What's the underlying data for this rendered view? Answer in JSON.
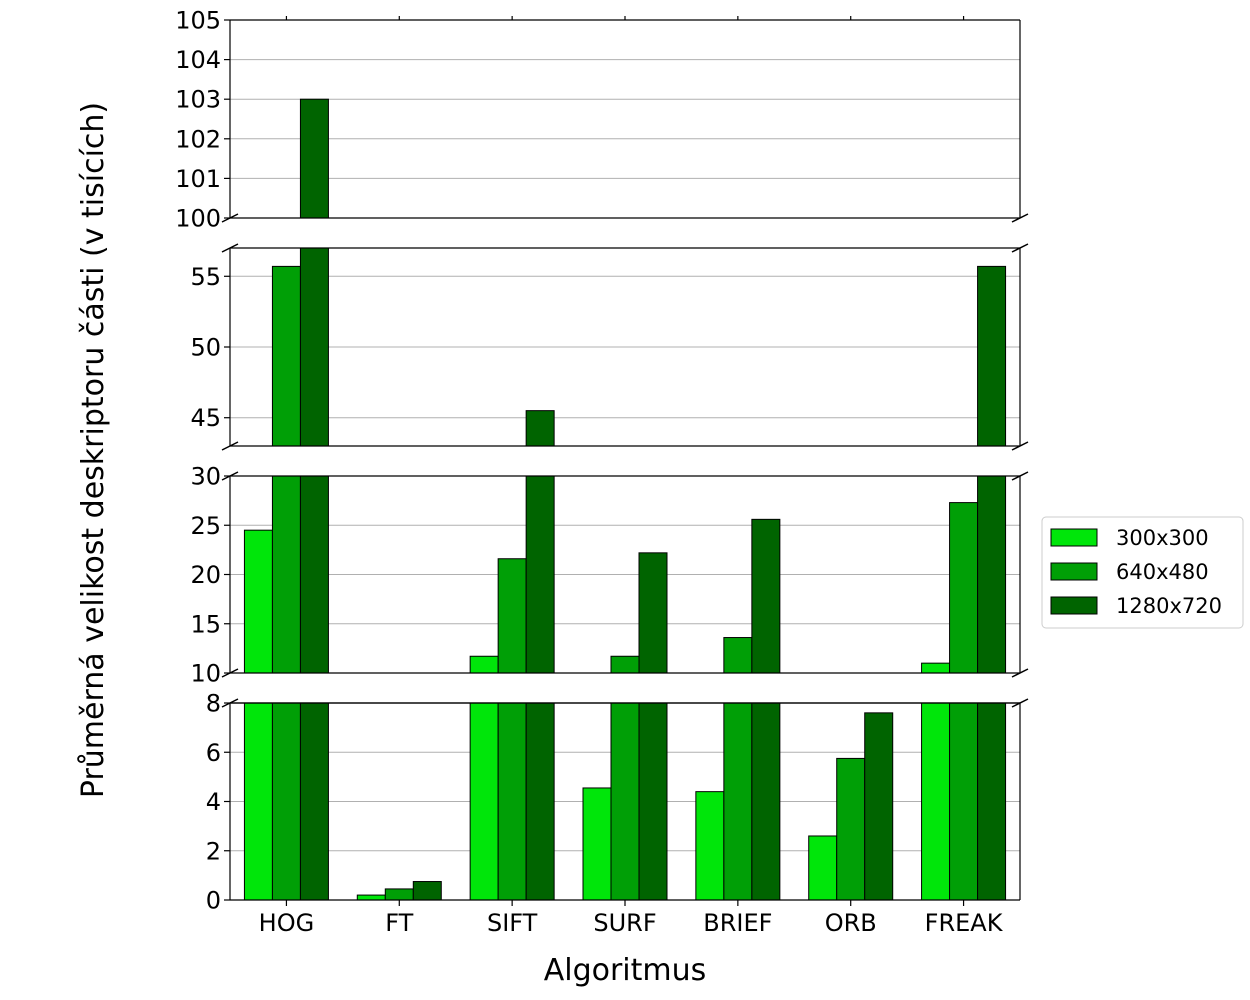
{
  "chart_data": {
    "type": "bar",
    "title": "",
    "xlabel": "Algoritmus",
    "ylabel": "Průměrná velikost deskriptoru části (v tisících)",
    "categories": [
      "HOG",
      "FT",
      "SIFT",
      "SURF",
      "BRIEF",
      "ORB",
      "FREAK"
    ],
    "series": [
      {
        "name": "300x300",
        "color": "#00e60a",
        "values": [
          24.5,
          0.2,
          11.7,
          4.55,
          4.4,
          2.6,
          11.0
        ]
      },
      {
        "name": "640x480",
        "color": "#009f06",
        "values": [
          55.7,
          0.45,
          21.6,
          11.7,
          13.6,
          5.75,
          27.3
        ]
      },
      {
        "name": "1280x720",
        "color": "#006400",
        "values": [
          103.0,
          0.75,
          45.5,
          22.2,
          25.6,
          7.6,
          55.7
        ]
      }
    ],
    "broken_axis_segments": [
      {
        "ylim": [
          100,
          105
        ],
        "ticks": [
          100,
          101,
          102,
          103,
          104,
          105
        ]
      },
      {
        "ylim": [
          43,
          57
        ],
        "ticks": [
          45,
          50,
          55
        ]
      },
      {
        "ylim": [
          10,
          30
        ],
        "ticks": [
          10,
          15,
          20,
          25,
          30
        ]
      },
      {
        "ylim": [
          0,
          8
        ],
        "ticks": [
          0,
          2,
          4,
          6,
          8
        ]
      }
    ],
    "grid": "y",
    "legend_position": "right"
  }
}
